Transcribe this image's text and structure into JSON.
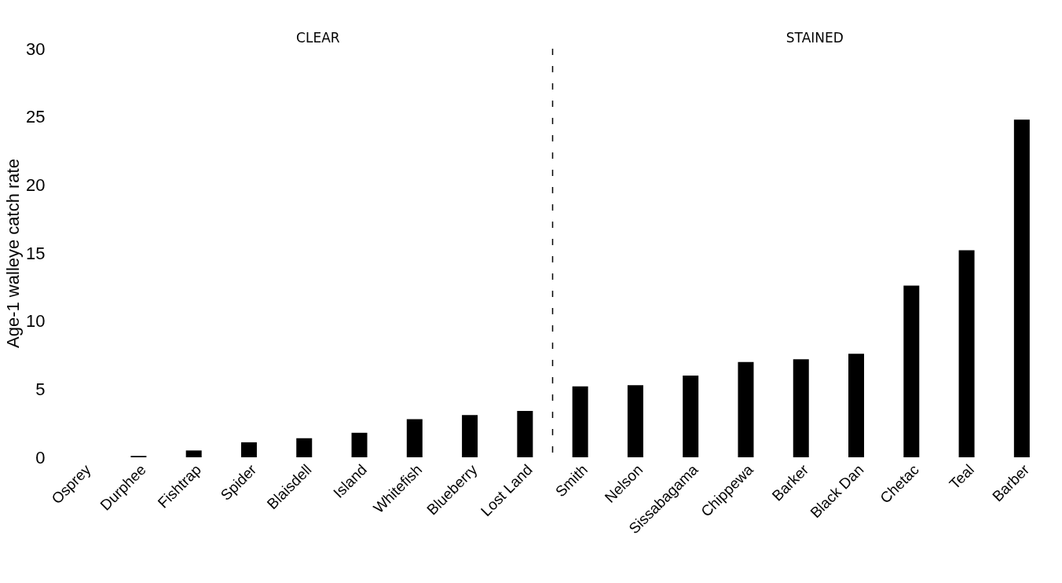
{
  "chart_data": {
    "type": "bar",
    "ylabel": "Age-1 walleye catch rate",
    "categories": [
      "Osprey",
      "Durphee",
      "Fishtrap",
      "Spider",
      "Blaisdell",
      "Island",
      "Whitefish",
      "Blueberry",
      "Lost Land",
      "Smith",
      "Nelson",
      "Sissabagama",
      "Chippewa",
      "Barker",
      "Black Dan",
      "Chetac",
      "Teal",
      "Barber"
    ],
    "values": [
      0,
      0.1,
      0.5,
      1.1,
      1.4,
      1.8,
      2.8,
      3.1,
      3.4,
      5.2,
      5.3,
      6.0,
      7.0,
      7.2,
      7.6,
      12.6,
      15.2,
      24.8
    ],
    "color": "#000000",
    "ylim": [
      0,
      30
    ],
    "yticks": [
      0,
      5,
      10,
      15,
      20,
      25,
      30
    ],
    "grid": false,
    "annotations": [
      "CLEAR",
      "STAINED"
    ]
  }
}
